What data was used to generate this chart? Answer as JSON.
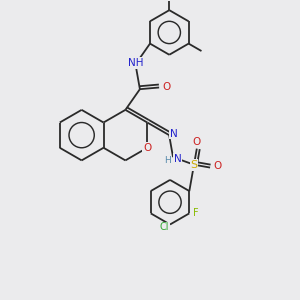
{
  "background_color": "#ebebed",
  "bond_color": "#2a2a2a",
  "atom_colors": {
    "N": "#2222cc",
    "O": "#cc2222",
    "S": "#ccaa00",
    "F": "#88bb00",
    "Cl": "#33aa33",
    "H": "#5588aa",
    "C": "#2a2a2a"
  },
  "figsize": [
    3.0,
    3.0
  ],
  "dpi": 100
}
